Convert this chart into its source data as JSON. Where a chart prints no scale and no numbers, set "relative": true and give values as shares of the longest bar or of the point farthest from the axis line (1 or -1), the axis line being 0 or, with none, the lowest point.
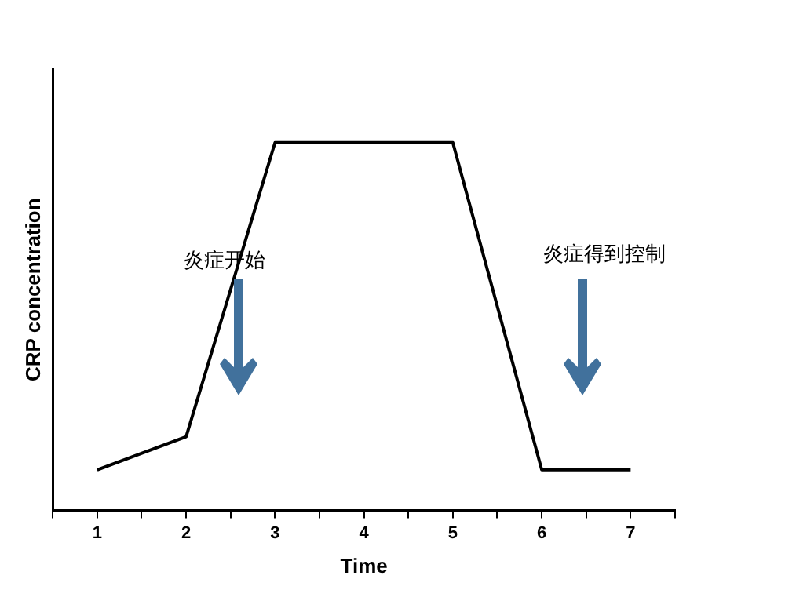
{
  "chart_data": {
    "type": "line",
    "relative": true,
    "xlabel": "Time",
    "ylabel": "CRP concentration",
    "x": [
      1,
      2,
      3,
      5,
      6,
      7
    ],
    "series": [
      {
        "color": "#000000",
        "values": [
          0.11,
          0.2,
          1,
          1,
          0.11,
          0.11
        ]
      }
    ],
    "xlim": [
      0.5,
      7.5
    ],
    "xticks": [
      {
        "value": 0.5,
        "label": null
      },
      1,
      {
        "value": 1.5,
        "label": null
      },
      2,
      {
        "value": 2.5,
        "label": null
      },
      3,
      {
        "value": 3.5,
        "label": null
      },
      4,
      {
        "value": 4.5,
        "label": null
      },
      5,
      {
        "value": 5.5,
        "label": null
      },
      6,
      {
        "value": 6.5,
        "label": null
      },
      7,
      {
        "value": 7.5,
        "label": null
      }
    ],
    "annotations": [
      "炎症开始",
      "炎症得到控制"
    ],
    "marker": "none",
    "line_style": "solid",
    "legend": false,
    "grid": false
  }
}
